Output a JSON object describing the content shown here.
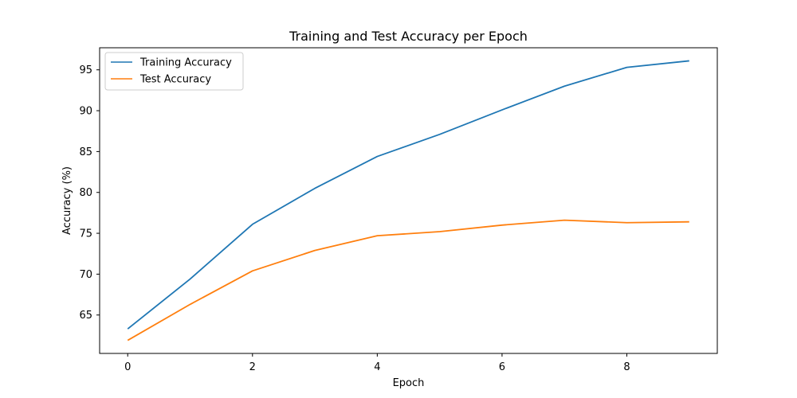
{
  "chart_data": {
    "type": "line",
    "title": "Training and Test Accuracy per Epoch",
    "xlabel": "Epoch",
    "ylabel": "Accuracy (%)",
    "x": [
      0,
      1,
      2,
      3,
      4,
      5,
      6,
      7,
      8,
      9
    ],
    "xlim": [
      -0.45,
      9.45
    ],
    "ylim": [
      60.3,
      97.7
    ],
    "xticks": [
      0,
      2,
      4,
      6,
      8
    ],
    "yticks": [
      65,
      70,
      75,
      80,
      85,
      90,
      95
    ],
    "grid": false,
    "legend_position": "upper-left",
    "series": [
      {
        "name": "Training Accuracy",
        "color": "#1f77b4",
        "values": [
          63.3,
          69.4,
          76.1,
          80.5,
          84.4,
          87.1,
          90.1,
          93.0,
          95.3,
          96.1
        ]
      },
      {
        "name": "Test Accuracy",
        "color": "#ff7f0e",
        "values": [
          61.9,
          66.3,
          70.4,
          72.9,
          74.7,
          75.2,
          76.0,
          76.6,
          76.3,
          76.4
        ]
      }
    ]
  }
}
